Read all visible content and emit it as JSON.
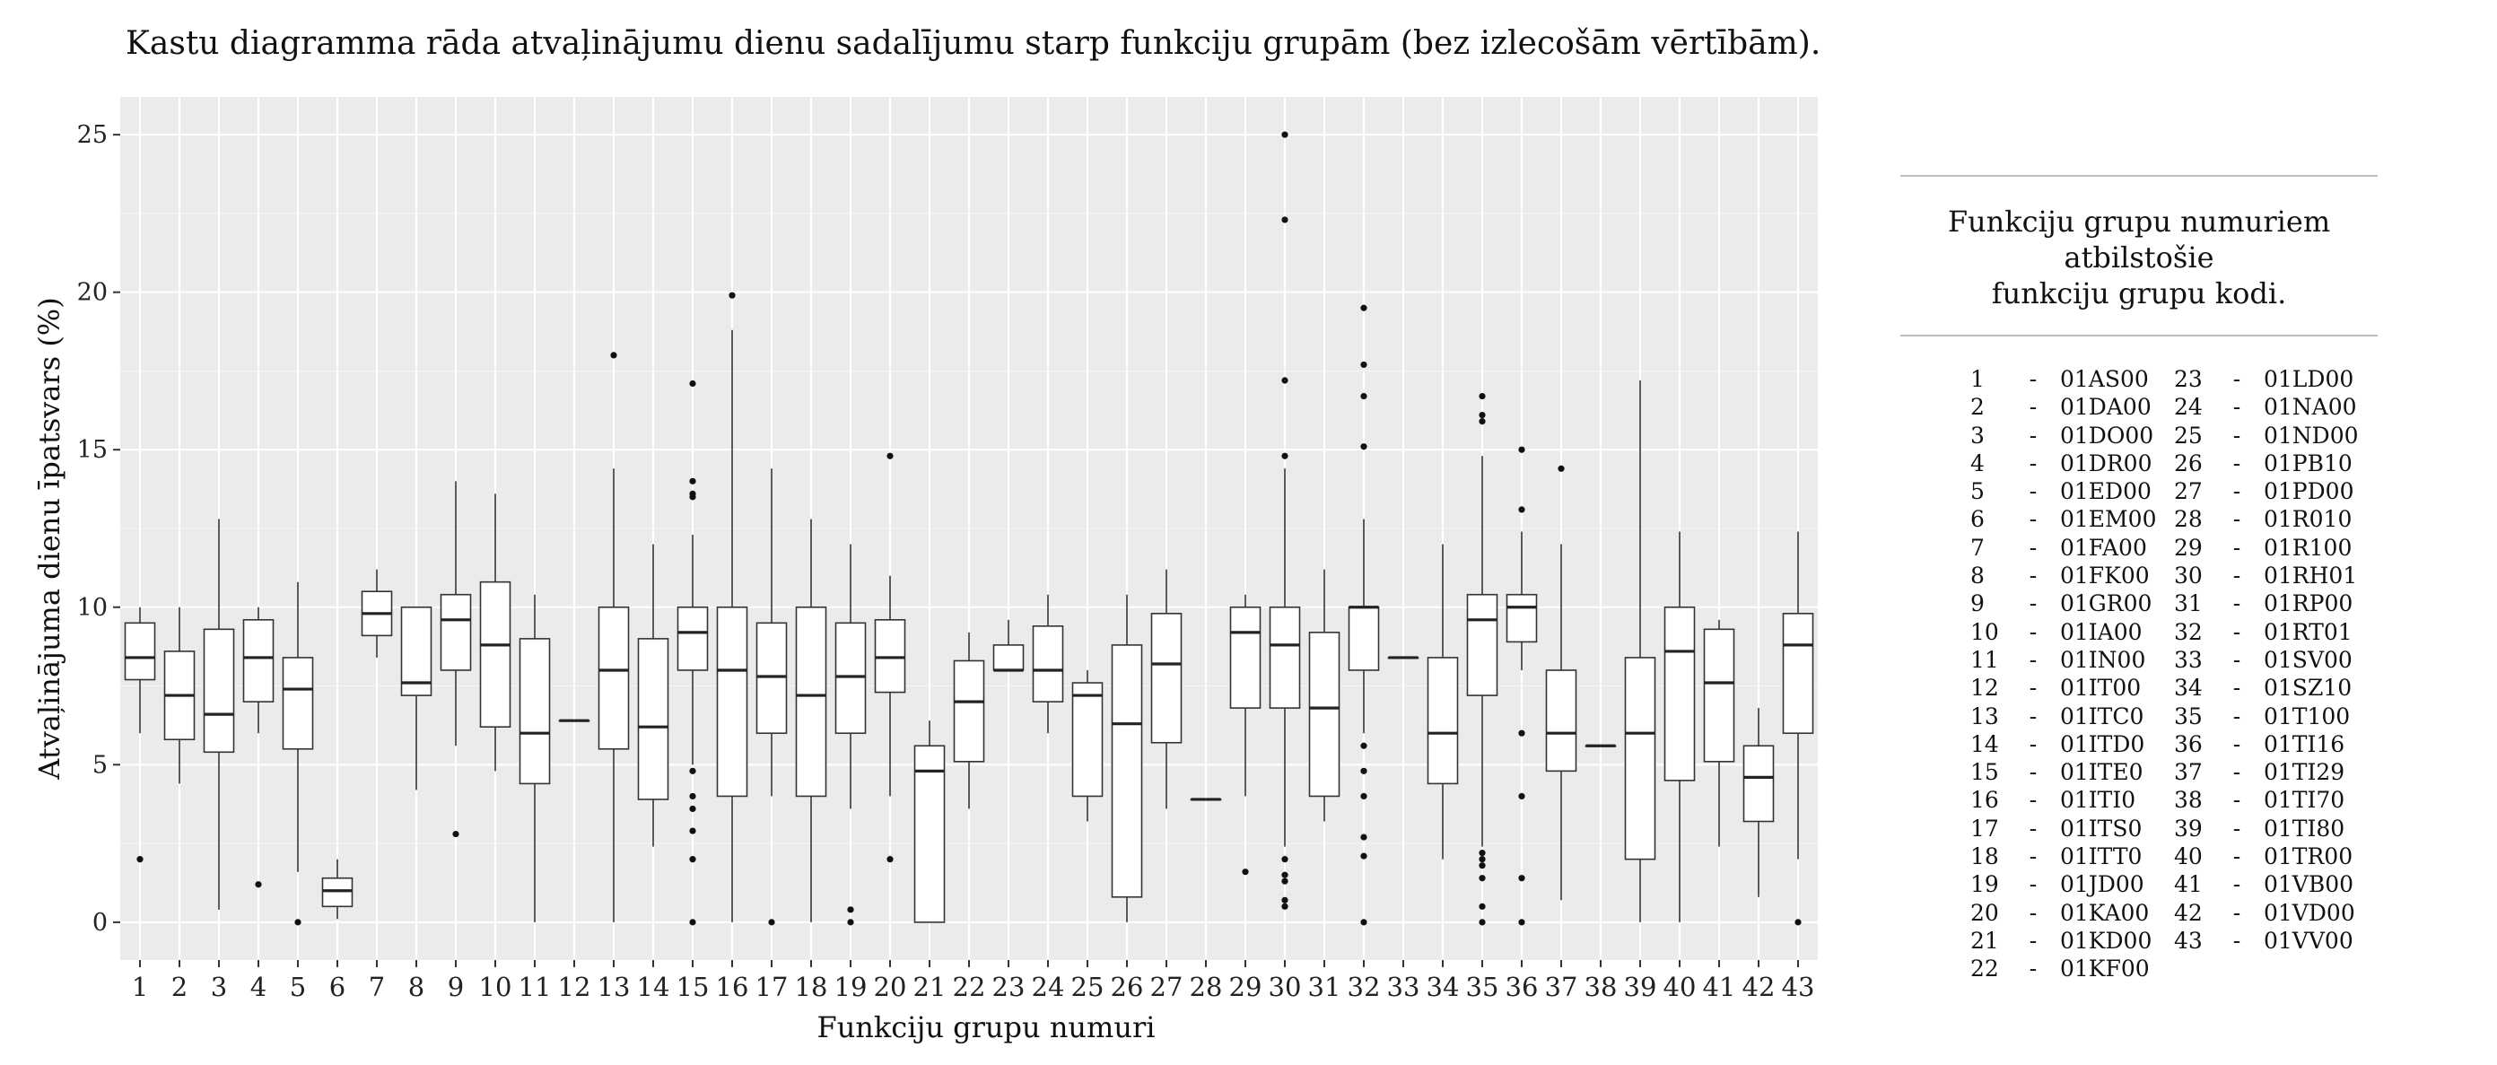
{
  "chart_data": {
    "type": "boxplot",
    "title": "Kastu diagramma rāda atvaļinājumu dienu sadalījumu starp funkciju grupām (bez izlecošām vērtībām).",
    "xlabel": "Funkciju grupu numuri",
    "ylabel": "Atvaļinājuma dienu īpatsvars (%)",
    "ylim": [
      -1.2,
      26.2
    ],
    "yticks": [
      0,
      5,
      10,
      15,
      20,
      25
    ],
    "grid": true,
    "categories": [
      "1",
      "2",
      "3",
      "4",
      "5",
      "6",
      "7",
      "8",
      "9",
      "10",
      "11",
      "12",
      "13",
      "14",
      "15",
      "16",
      "17",
      "18",
      "19",
      "20",
      "21",
      "22",
      "23",
      "24",
      "25",
      "26",
      "27",
      "28",
      "29",
      "30",
      "31",
      "32",
      "33",
      "34",
      "35",
      "36",
      "37",
      "38",
      "39",
      "40",
      "41",
      "42",
      "43"
    ],
    "boxes": [
      {
        "x": "1",
        "min": 6.0,
        "q1": 7.7,
        "median": 8.4,
        "q3": 9.5,
        "max": 10.0,
        "outliers": [
          2.0
        ]
      },
      {
        "x": "2",
        "min": 4.4,
        "q1": 5.8,
        "median": 7.2,
        "q3": 8.6,
        "max": 10.0,
        "outliers": []
      },
      {
        "x": "3",
        "min": 0.4,
        "q1": 5.4,
        "median": 6.6,
        "q3": 9.3,
        "max": 12.8,
        "outliers": []
      },
      {
        "x": "4",
        "min": 6.0,
        "q1": 7.0,
        "median": 8.4,
        "q3": 9.6,
        "max": 10.0,
        "outliers": [
          1.2
        ]
      },
      {
        "x": "5",
        "min": 1.6,
        "q1": 5.5,
        "median": 7.4,
        "q3": 8.4,
        "max": 10.8,
        "outliers": [
          0.0
        ]
      },
      {
        "x": "6",
        "min": 0.1,
        "q1": 0.5,
        "median": 1.0,
        "q3": 1.4,
        "max": 2.0,
        "outliers": []
      },
      {
        "x": "7",
        "min": 8.4,
        "q1": 9.1,
        "median": 9.8,
        "q3": 10.5,
        "max": 11.2,
        "outliers": []
      },
      {
        "x": "8",
        "min": 4.2,
        "q1": 7.2,
        "median": 7.6,
        "q3": 10.0,
        "max": 10.0,
        "outliers": []
      },
      {
        "x": "9",
        "min": 5.6,
        "q1": 8.0,
        "median": 9.6,
        "q3": 10.4,
        "max": 14.0,
        "outliers": [
          2.8
        ]
      },
      {
        "x": "10",
        "min": 4.8,
        "q1": 6.2,
        "median": 8.8,
        "q3": 10.8,
        "max": 13.6,
        "outliers": []
      },
      {
        "x": "11",
        "min": 0.0,
        "q1": 4.4,
        "median": 6.0,
        "q3": 9.0,
        "max": 10.4,
        "outliers": []
      },
      {
        "x": "12",
        "min": 6.4,
        "q1": 6.4,
        "median": 6.4,
        "q3": 6.4,
        "max": 6.4,
        "outliers": []
      },
      {
        "x": "13",
        "min": 0.0,
        "q1": 5.5,
        "median": 8.0,
        "q3": 10.0,
        "max": 14.4,
        "outliers": [
          18.0
        ]
      },
      {
        "x": "14",
        "min": 2.4,
        "q1": 3.9,
        "median": 6.2,
        "q3": 9.0,
        "max": 12.0,
        "outliers": []
      },
      {
        "x": "15",
        "min": 5.0,
        "q1": 8.0,
        "median": 9.2,
        "q3": 10.0,
        "max": 12.3,
        "outliers": [
          17.1,
          14.0,
          13.6,
          13.5,
          4.8,
          4.0,
          3.6,
          2.9,
          2.0,
          0.0
        ]
      },
      {
        "x": "16",
        "min": 0.0,
        "q1": 4.0,
        "median": 8.0,
        "q3": 10.0,
        "max": 18.8,
        "outliers": [
          19.9
        ]
      },
      {
        "x": "17",
        "min": 4.0,
        "q1": 6.0,
        "median": 7.8,
        "q3": 9.5,
        "max": 14.4,
        "outliers": [
          0.0
        ]
      },
      {
        "x": "18",
        "min": 0.0,
        "q1": 4.0,
        "median": 7.2,
        "q3": 10.0,
        "max": 12.8,
        "outliers": []
      },
      {
        "x": "19",
        "min": 3.6,
        "q1": 6.0,
        "median": 7.8,
        "q3": 9.5,
        "max": 12.0,
        "outliers": [
          0.4,
          0.0
        ]
      },
      {
        "x": "20",
        "min": 4.0,
        "q1": 7.3,
        "median": 8.4,
        "q3": 9.6,
        "max": 11.0,
        "outliers": [
          14.8,
          2.0
        ]
      },
      {
        "x": "21",
        "min": 0.0,
        "q1": 0.0,
        "median": 4.8,
        "q3": 5.6,
        "max": 6.4,
        "outliers": []
      },
      {
        "x": "22",
        "min": 3.6,
        "q1": 5.1,
        "median": 7.0,
        "q3": 8.3,
        "max": 9.2,
        "outliers": []
      },
      {
        "x": "23",
        "min": 8.0,
        "q1": 8.0,
        "median": 8.0,
        "q3": 8.8,
        "max": 9.6,
        "outliers": []
      },
      {
        "x": "24",
        "min": 6.0,
        "q1": 7.0,
        "median": 8.0,
        "q3": 9.4,
        "max": 10.4,
        "outliers": []
      },
      {
        "x": "25",
        "min": 3.2,
        "q1": 4.0,
        "median": 7.2,
        "q3": 7.6,
        "max": 8.0,
        "outliers": []
      },
      {
        "x": "26",
        "min": 0.0,
        "q1": 0.8,
        "median": 6.3,
        "q3": 8.8,
        "max": 10.4,
        "outliers": []
      },
      {
        "x": "27",
        "min": 3.6,
        "q1": 5.7,
        "median": 8.2,
        "q3": 9.8,
        "max": 11.2,
        "outliers": []
      },
      {
        "x": "28",
        "min": 3.9,
        "q1": 3.9,
        "median": 3.9,
        "q3": 3.9,
        "max": 3.9,
        "outliers": []
      },
      {
        "x": "29",
        "min": 4.0,
        "q1": 6.8,
        "median": 9.2,
        "q3": 10.0,
        "max": 10.4,
        "outliers": [
          1.6
        ]
      },
      {
        "x": "30",
        "min": 2.4,
        "q1": 6.8,
        "median": 8.8,
        "q3": 10.0,
        "max": 14.4,
        "outliers": [
          25.0,
          22.3,
          17.2,
          14.8,
          2.0,
          1.5,
          1.3,
          0.7,
          0.5
        ]
      },
      {
        "x": "31",
        "min": 3.2,
        "q1": 4.0,
        "median": 6.8,
        "q3": 9.2,
        "max": 11.2,
        "outliers": []
      },
      {
        "x": "32",
        "min": 6.0,
        "q1": 8.0,
        "median": 10.0,
        "q3": 10.0,
        "max": 12.8,
        "outliers": [
          19.5,
          17.7,
          16.7,
          15.1,
          5.6,
          4.8,
          4.0,
          2.7,
          2.1,
          0.0
        ]
      },
      {
        "x": "33",
        "min": 8.4,
        "q1": 8.4,
        "median": 8.4,
        "q3": 8.4,
        "max": 8.4,
        "outliers": []
      },
      {
        "x": "34",
        "min": 2.0,
        "q1": 4.4,
        "median": 6.0,
        "q3": 8.4,
        "max": 12.0,
        "outliers": []
      },
      {
        "x": "35",
        "min": 2.4,
        "q1": 7.2,
        "median": 9.6,
        "q3": 10.4,
        "max": 14.8,
        "outliers": [
          16.7,
          16.1,
          15.9,
          2.2,
          2.0,
          1.8,
          1.4,
          0.5,
          0.0
        ]
      },
      {
        "x": "36",
        "min": 8.0,
        "q1": 8.9,
        "median": 10.0,
        "q3": 10.4,
        "max": 12.4,
        "outliers": [
          15.0,
          13.1,
          6.0,
          4.0,
          1.4,
          0.0
        ]
      },
      {
        "x": "37",
        "min": 0.7,
        "q1": 4.8,
        "median": 6.0,
        "q3": 8.0,
        "max": 12.0,
        "outliers": [
          14.4
        ]
      },
      {
        "x": "38",
        "min": 5.6,
        "q1": 5.6,
        "median": 5.6,
        "q3": 5.6,
        "max": 5.6,
        "outliers": []
      },
      {
        "x": "39",
        "min": 0.0,
        "q1": 2.0,
        "median": 6.0,
        "q3": 8.4,
        "max": 17.2,
        "outliers": []
      },
      {
        "x": "40",
        "min": 0.0,
        "q1": 4.5,
        "median": 8.6,
        "q3": 10.0,
        "max": 12.4,
        "outliers": []
      },
      {
        "x": "41",
        "min": 2.4,
        "q1": 5.1,
        "median": 7.6,
        "q3": 9.3,
        "max": 9.6,
        "outliers": []
      },
      {
        "x": "42",
        "min": 0.8,
        "q1": 3.2,
        "median": 4.6,
        "q3": 5.6,
        "max": 6.8,
        "outliers": []
      },
      {
        "x": "43",
        "min": 2.0,
        "q1": 6.0,
        "median": 8.8,
        "q3": 9.8,
        "max": 12.4,
        "outliers": [
          0.0
        ]
      }
    ]
  },
  "legend": {
    "title_line1": "Funkciju grupu numuriem atbilstošie",
    "title_line2": "funkciju grupu kodi.",
    "col1": [
      {
        "num": "1",
        "code": "01AS00"
      },
      {
        "num": "2",
        "code": "01DA00"
      },
      {
        "num": "3",
        "code": "01DO00"
      },
      {
        "num": "4",
        "code": "01DR00"
      },
      {
        "num": "5",
        "code": "01ED00"
      },
      {
        "num": "6",
        "code": "01EM00"
      },
      {
        "num": "7",
        "code": "01FA00"
      },
      {
        "num": "8",
        "code": "01FK00"
      },
      {
        "num": "9",
        "code": "01GR00"
      },
      {
        "num": "10",
        "code": "01IA00"
      },
      {
        "num": "11",
        "code": "01IN00"
      },
      {
        "num": "12",
        "code": "01IT00"
      },
      {
        "num": "13",
        "code": "01ITC0"
      },
      {
        "num": "14",
        "code": "01ITD0"
      },
      {
        "num": "15",
        "code": "01ITE0"
      },
      {
        "num": "16",
        "code": "01ITI0"
      },
      {
        "num": "17",
        "code": "01ITS0"
      },
      {
        "num": "18",
        "code": "01ITT0"
      },
      {
        "num": "19",
        "code": "01JD00"
      },
      {
        "num": "20",
        "code": "01KA00"
      },
      {
        "num": "21",
        "code": "01KD00"
      },
      {
        "num": "22",
        "code": "01KF00"
      }
    ],
    "col2": [
      {
        "num": "23",
        "code": "01LD00"
      },
      {
        "num": "24",
        "code": "01NA00"
      },
      {
        "num": "25",
        "code": "01ND00"
      },
      {
        "num": "26",
        "code": "01PB10"
      },
      {
        "num": "27",
        "code": "01PD00"
      },
      {
        "num": "28",
        "code": "01R010"
      },
      {
        "num": "29",
        "code": "01R100"
      },
      {
        "num": "30",
        "code": "01RH01"
      },
      {
        "num": "31",
        "code": "01RP00"
      },
      {
        "num": "32",
        "code": "01RT01"
      },
      {
        "num": "33",
        "code": "01SV00"
      },
      {
        "num": "34",
        "code": "01SZ10"
      },
      {
        "num": "35",
        "code": "01T100"
      },
      {
        "num": "36",
        "code": "01TI16"
      },
      {
        "num": "37",
        "code": "01TI29"
      },
      {
        "num": "38",
        "code": "01TI70"
      },
      {
        "num": "39",
        "code": "01TI80"
      },
      {
        "num": "40",
        "code": "01TR00"
      },
      {
        "num": "41",
        "code": "01VB00"
      },
      {
        "num": "42",
        "code": "01VD00"
      },
      {
        "num": "43",
        "code": "01VV00"
      }
    ]
  }
}
